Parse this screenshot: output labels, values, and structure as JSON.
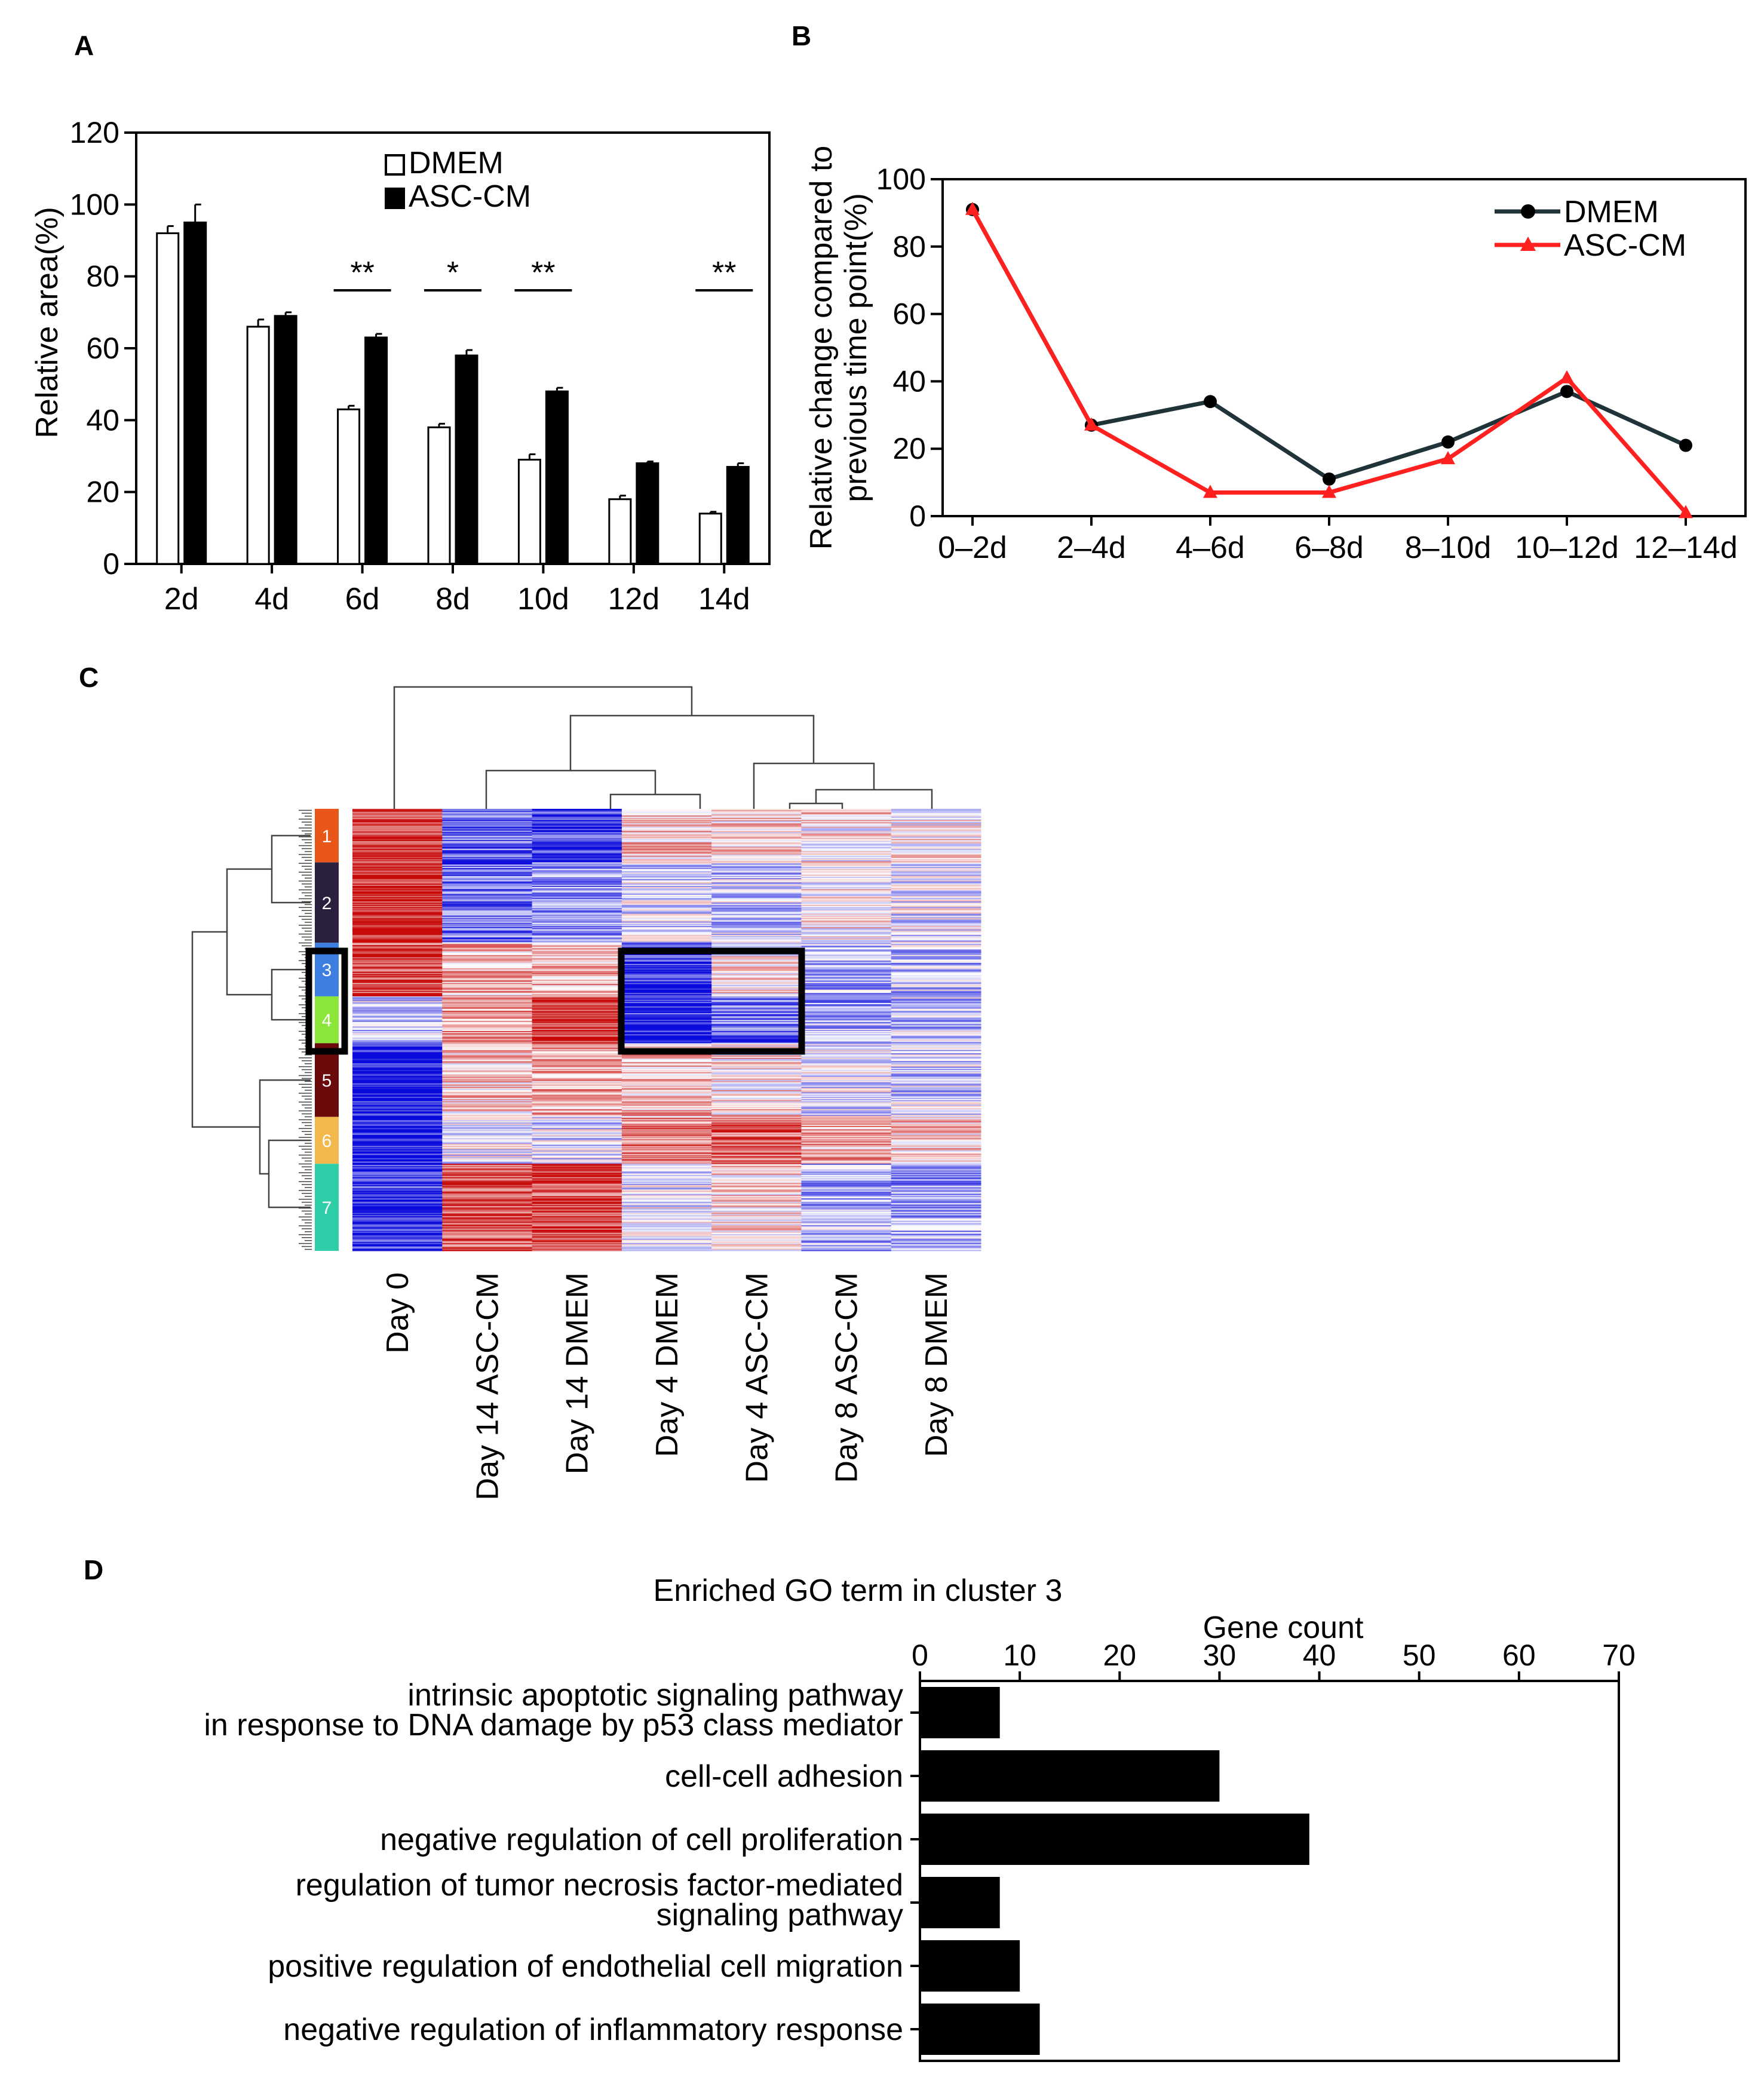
{
  "panels": {
    "a": "A",
    "b": "B",
    "c": "C",
    "d": "D"
  },
  "chart_data": [
    {
      "panel": "A",
      "type": "bar",
      "ylabel": "Relative area(%)",
      "xlabel": "",
      "ylim": [
        0,
        120
      ],
      "yticks": [
        0,
        20,
        40,
        60,
        80,
        100,
        120
      ],
      "categories": [
        "2d",
        "4d",
        "6d",
        "8d",
        "10d",
        "12d",
        "14d"
      ],
      "series": [
        {
          "name": "DMEM",
          "color": "#ffffff",
          "values": [
            92,
            66,
            43,
            38,
            29,
            18,
            14
          ],
          "errors": [
            2,
            2,
            1,
            1,
            1.5,
            1,
            0.5
          ]
        },
        {
          "name": "ASC-CM",
          "color": "#000000",
          "values": [
            95,
            69,
            63,
            58,
            48,
            28,
            27
          ],
          "errors": [
            5,
            1,
            1,
            1.5,
            1,
            0.5,
            1
          ]
        }
      ],
      "significance": [
        {
          "category": "6d",
          "label": "**"
        },
        {
          "category": "8d",
          "label": "*"
        },
        {
          "category": "10d",
          "label": "**"
        },
        {
          "category": "14d",
          "label": "**"
        }
      ],
      "legend_position": "top-right"
    },
    {
      "panel": "B",
      "type": "line",
      "ylabel_lines": [
        "Relative change compared to",
        "previous time point(%)"
      ],
      "ylim": [
        0,
        100
      ],
      "yticks": [
        0,
        20,
        40,
        60,
        80,
        100
      ],
      "categories": [
        "0–2d",
        "2–4d",
        "4–6d",
        "6–8d",
        "8–10d",
        "10–12d",
        "12–14d"
      ],
      "series": [
        {
          "name": "DMEM",
          "color": "#1f3338",
          "marker": "circle",
          "values": [
            91,
            27,
            34,
            11,
            22,
            37,
            21
          ]
        },
        {
          "name": "ASC-CM",
          "color": "#ff2020",
          "marker": "triangle",
          "values": [
            91,
            27,
            7,
            7,
            17,
            41,
            1
          ]
        }
      ],
      "legend_position": "top-right"
    },
    {
      "panel": "C",
      "type": "heatmap",
      "columns": [
        "Day 0",
        "Day 14 ASC-CM",
        "Day 14 DMEM",
        "Day 4 DMEM",
        "Day 4 ASC-CM",
        "Day 8 ASC-CM",
        "Day 8 DMEM"
      ],
      "clusters": [
        {
          "label": "1",
          "color": "#e8561a",
          "rows": 8,
          "profile": [
            0.85,
            -0.6,
            -0.8,
            0.25,
            0.15,
            0.1,
            0.05
          ]
        },
        {
          "label": "2",
          "color": "#2a1f3d",
          "rows": 12,
          "profile": [
            0.95,
            -0.55,
            -0.4,
            -0.15,
            -0.2,
            0.05,
            -0.1
          ]
        },
        {
          "label": "3",
          "color": "#3d7fe0",
          "rows": 8,
          "profile": [
            0.75,
            0.3,
            0.35,
            -0.85,
            0.1,
            -0.3,
            -0.25
          ]
        },
        {
          "label": "4",
          "color": "#8ce63a",
          "rows": 7,
          "profile": [
            -0.2,
            0.4,
            0.8,
            -0.85,
            -0.6,
            -0.35,
            -0.2
          ]
        },
        {
          "label": "5",
          "color": "#6b0a0a",
          "rows": 11,
          "profile": [
            -0.95,
            0.2,
            0.3,
            0.3,
            0.15,
            -0.1,
            -0.2
          ]
        },
        {
          "label": "6",
          "color": "#f2b84b",
          "rows": 7,
          "profile": [
            -0.95,
            -0.1,
            -0.15,
            0.55,
            0.6,
            0.35,
            0.2
          ]
        },
        {
          "label": "7",
          "color": "#2ecfa8",
          "rows": 13,
          "profile": [
            -0.9,
            0.7,
            0.75,
            -0.1,
            0.15,
            -0.3,
            -0.35
          ]
        }
      ],
      "highlight": {
        "clusters": [
          "3",
          "4"
        ],
        "columns": [
          "Day 4 DMEM",
          "Day 4 ASC-CM"
        ]
      }
    },
    {
      "panel": "D",
      "type": "bar",
      "orientation": "horizontal",
      "title": "Enriched GO term in cluster 3",
      "xlabel": "Gene count",
      "xlim": [
        0,
        70
      ],
      "xticks": [
        0,
        10,
        20,
        30,
        40,
        50,
        60,
        70
      ],
      "categories": [
        [
          "intrinsic apoptotic signaling pathway",
          "in response to DNA damage by p53 class mediator"
        ],
        [
          "cell-cell adhesion"
        ],
        [
          "negative regulation of cell proliferation"
        ],
        [
          "regulation of tumor necrosis factor-mediated",
          "signaling pathway"
        ],
        [
          "positive regulation of endothelial cell migration"
        ],
        [
          "negative regulation of inflammatory response"
        ]
      ],
      "values": [
        8,
        30,
        39,
        8,
        10,
        12
      ]
    }
  ]
}
